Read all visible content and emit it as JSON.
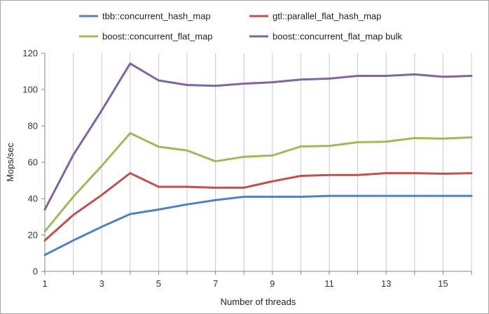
{
  "chart_data": {
    "type": "line",
    "title": "",
    "xlabel": "Number of threads",
    "ylabel": "Mops/sec",
    "xlim": [
      1,
      16
    ],
    "ylim": [
      0,
      120
    ],
    "x": [
      1,
      2,
      3,
      4,
      5,
      6,
      7,
      8,
      9,
      10,
      11,
      12,
      13,
      14,
      15,
      16
    ],
    "x_ticks": [
      1,
      3,
      5,
      7,
      9,
      11,
      13,
      15
    ],
    "y_ticks": [
      0,
      20,
      40,
      60,
      80,
      100,
      120
    ],
    "grid": "vertical",
    "legend_position": "top",
    "series": [
      {
        "name": "tbb::concurrent_hash_map",
        "color": "#4f81bd",
        "values": [
          9,
          17,
          24.5,
          31.5,
          34,
          36.8,
          39.2,
          41,
          41,
          41,
          41.5,
          41.5,
          41.5,
          41.5,
          41.5,
          41.5
        ]
      },
      {
        "name": "gtl::parallel_flat_hash_map",
        "color": "#c0504d",
        "values": [
          17,
          31,
          42,
          54,
          46.5,
          46.5,
          46,
          46,
          49.5,
          52.5,
          53,
          53,
          54,
          54,
          53.7,
          54
        ]
      },
      {
        "name": "boost::concurrent_flat_map",
        "color": "#9bbb59",
        "values": [
          22,
          41,
          58,
          76,
          68.5,
          66.5,
          60.5,
          63,
          63.7,
          68.7,
          69,
          71,
          71.3,
          73.3,
          73,
          73.7
        ]
      },
      {
        "name": "boost::concurrent_flat_map bulk",
        "color": "#8064a2",
        "values": [
          34,
          64,
          88.5,
          114.3,
          105,
          102.5,
          102,
          103.2,
          104,
          105.5,
          106,
          107.5,
          107.5,
          108.3,
          107,
          107.5
        ]
      }
    ]
  }
}
